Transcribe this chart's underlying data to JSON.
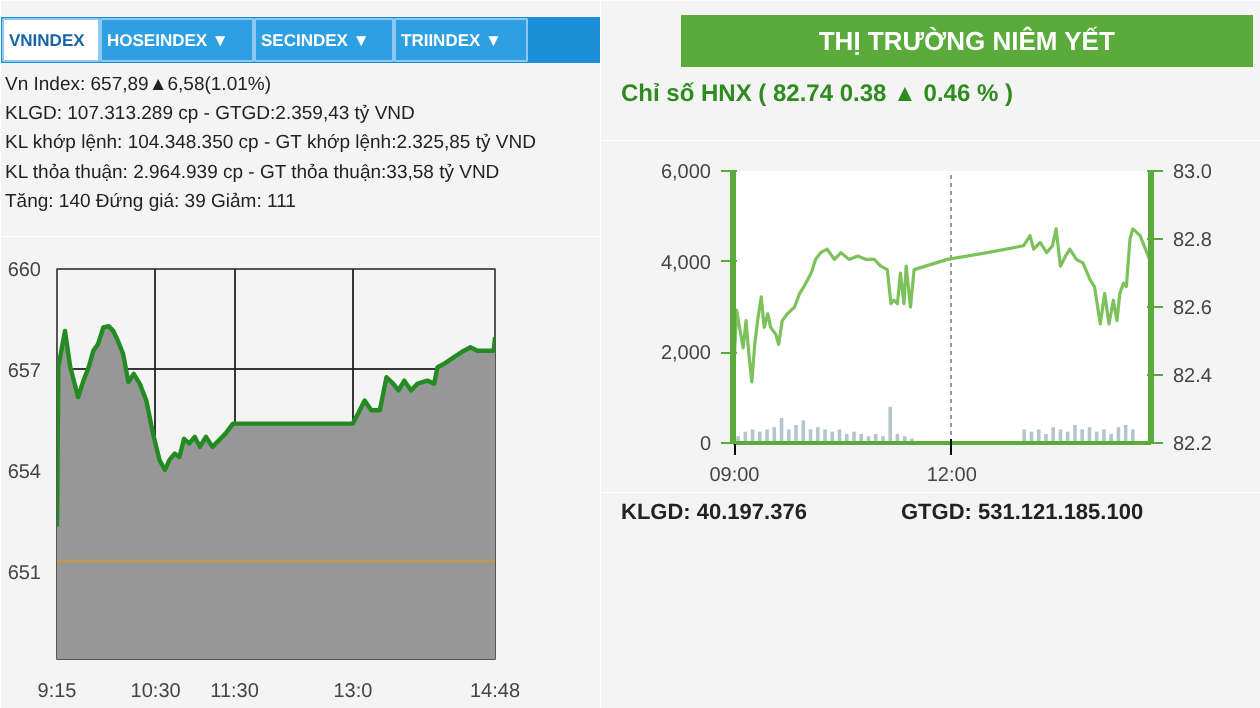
{
  "chart_data": [
    {
      "type": "area",
      "annotations": [
        "VNINDEX",
        "HOSEINDEX ▼",
        "SECINDEX ▼",
        "TRIINDEX ▼",
        "Vn Index: 657,89▲6,58(1.01%)",
        "KLGD: 107.313.289 cp - GTGD:2.359,43 tỷ VND",
        "KL khớp lệnh: 104.348.350 cp - GT khớp lệnh:2.325,85 tỷ VND",
        "KL thỏa thuận: 2.964.939 cp - GT thỏa thuận:33,58 tỷ VND",
        "Tăng: 140 Đứng giá: 39 Giảm: 111"
      ],
      "x": [
        9.25,
        9.267,
        9.351,
        9.418,
        9.518,
        9.585,
        9.652,
        9.711,
        9.77,
        9.837,
        9.904,
        9.963,
        10.021,
        10.088,
        10.155,
        10.222,
        10.298,
        10.382,
        10.466,
        10.549,
        10.617,
        10.675,
        10.742,
        10.801,
        10.86,
        10.927,
        10.994,
        11.061,
        11.136,
        11.22,
        11.304,
        11.388,
        11.48,
        12.997,
        13.065,
        13.148,
        13.232,
        13.341,
        13.425,
        13.509,
        13.576,
        13.651,
        13.735,
        13.819,
        13.945,
        14.029,
        14.071,
        14.155,
        14.28,
        14.406,
        14.49,
        14.574,
        14.783,
        14.8
      ],
      "series": [
        {
          "color": "#228b22",
          "values": [
            652.34,
            657.08,
            658.16,
            657.08,
            656.19,
            656.68,
            657.08,
            657.57,
            657.77,
            658.26,
            658.3,
            658.16,
            657.87,
            657.47,
            656.64,
            656.88,
            656.59,
            656.09,
            655.11,
            654.32,
            654.02,
            654.32,
            654.51,
            654.41,
            654.95,
            654.81,
            655.01,
            654.71,
            655.01,
            654.71,
            654.91,
            655.11,
            655.4,
            655.4,
            655.7,
            656.09,
            655.8,
            655.8,
            656.78,
            656.59,
            656.39,
            656.68,
            656.39,
            656.59,
            656.68,
            656.59,
            657.08,
            657.18,
            657.38,
            657.57,
            657.67,
            657.57,
            657.57,
            657.97
          ]
        }
      ],
      "xlim": [
        9.25,
        14.8
      ],
      "xticks": [
        {
          "value": 9.25,
          "label": "9:15"
        },
        {
          "value": 10.5,
          "label": "10:30"
        },
        {
          "value": 11.5,
          "label": "11:30"
        },
        {
          "value": 13.0,
          "label": "13:0"
        },
        {
          "value": 14.8,
          "label": "14:48"
        }
      ],
      "ylim": [
        648.4,
        660
      ],
      "yticks": [
        651,
        654,
        657,
        660
      ],
      "ref_lines": [
        {
          "axis": "y",
          "value": 651.31,
          "color": "#b89a5a"
        }
      ],
      "grid": true
    },
    {
      "type": "line",
      "title": "THỊ TRƯỜNG NIÊM YẾT",
      "subtitle": "Chỉ số HNX ( 82.74  0.38 ▲  0.46 % )",
      "annotations": [
        "KLGD:     40.197.376",
        "GTGD:     531.121.185.100"
      ],
      "series": [
        {
          "type": "bar",
          "color": "#b4c6cc",
          "x": [
            9.05,
            9.15,
            9.25,
            9.35,
            9.45,
            9.55,
            9.65,
            9.75,
            9.85,
            9.95,
            10.05,
            10.15,
            10.25,
            10.35,
            10.45,
            10.55,
            10.65,
            10.75,
            10.85,
            10.95,
            11.05,
            11.15,
            11.25,
            11.35,
            11.45,
            13.0,
            13.1,
            13.2,
            13.3,
            13.4,
            13.5,
            13.6,
            13.7,
            13.8,
            13.9,
            14.0,
            14.1,
            14.2,
            14.3,
            14.4,
            14.5
          ],
          "values": [
            150,
            250,
            300,
            250,
            300,
            350,
            550,
            300,
            400,
            500,
            300,
            350,
            300,
            250,
            300,
            200,
            250,
            200,
            150,
            200,
            150,
            800,
            200,
            150,
            100,
            300,
            250,
            300,
            200,
            350,
            300,
            250,
            400,
            300,
            350,
            250,
            300,
            200,
            350,
            400,
            300
          ]
        },
        {
          "type": "line",
          "axis": "y2",
          "color": "#7cc25a",
          "x": [
            9.0,
            9.03,
            9.07,
            9.12,
            9.16,
            9.2,
            9.24,
            9.28,
            9.32,
            9.37,
            9.41,
            9.46,
            9.5,
            9.57,
            9.61,
            9.66,
            9.73,
            9.83,
            9.9,
            9.96,
            10.06,
            10.12,
            10.19,
            10.28,
            10.38,
            10.47,
            10.58,
            10.7,
            10.82,
            10.93,
            11.02,
            11.11,
            11.16,
            11.2,
            11.25,
            11.29,
            11.34,
            11.37,
            11.43,
            11.48,
            11.94,
            12.49,
            12.99,
            13.08,
            13.13,
            13.22,
            13.31,
            13.39,
            13.44,
            13.5,
            13.57,
            13.63,
            13.72,
            13.81,
            13.91,
            13.97,
            14.05,
            14.11,
            14.17,
            14.23,
            14.28,
            14.32,
            14.37,
            14.41,
            14.46,
            14.5,
            14.6,
            14.73
          ],
          "values": [
            82.46,
            82.59,
            82.54,
            82.48,
            82.56,
            82.46,
            82.38,
            82.49,
            82.56,
            82.63,
            82.54,
            82.58,
            82.54,
            82.52,
            82.49,
            82.56,
            82.58,
            82.6,
            82.64,
            82.66,
            82.7,
            82.74,
            82.76,
            82.77,
            82.74,
            82.76,
            82.74,
            82.75,
            82.74,
            82.74,
            82.72,
            82.71,
            82.61,
            82.62,
            82.61,
            82.7,
            82.61,
            82.72,
            82.6,
            82.71,
            82.74,
            82.76,
            82.78,
            82.81,
            82.77,
            82.79,
            82.76,
            82.78,
            82.83,
            82.72,
            82.75,
            82.77,
            82.74,
            82.73,
            82.68,
            82.66,
            82.55,
            82.64,
            82.55,
            82.62,
            82.56,
            82.64,
            82.67,
            82.66,
            82.8,
            82.83,
            82.81,
            82.74
          ]
        }
      ],
      "xlim": [
        8.98,
        14.75
      ],
      "xticks": [
        {
          "value": 9,
          "label": "09:00"
        },
        {
          "value": 12,
          "label": "12:00"
        }
      ],
      "ylim": [
        0,
        6000
      ],
      "yticks": [
        0,
        {
          "value": 2000,
          "label": "2,000"
        },
        {
          "value": 4000,
          "label": "4,000"
        },
        {
          "value": 6000,
          "label": "6,000"
        }
      ],
      "y2lim": [
        82.2,
        83.0
      ],
      "y2ticks": [
        82.2,
        82.4,
        82.6,
        82.8,
        {
          "value": 83.0,
          "label": "83.0"
        }
      ],
      "grid": "x"
    }
  ]
}
